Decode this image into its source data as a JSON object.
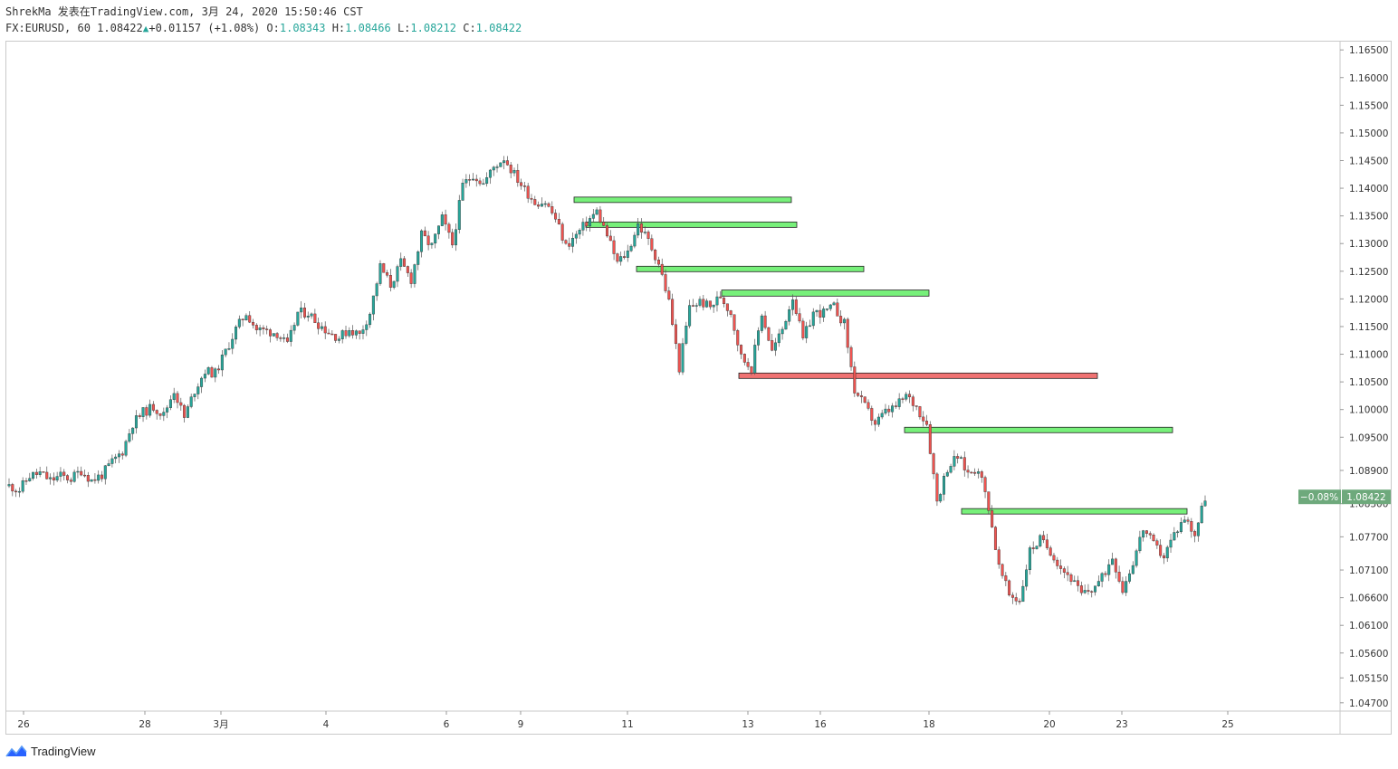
{
  "header": {
    "line1": "ShrekMa 发表在TradingView.com, 3月 24, 2020 15:50:46 CST",
    "symbol": "FX:EURUSD, 60",
    "last": "1.08422",
    "change": "+0.01157 (+1.08%)",
    "o_label": "O:",
    "o_value": "1.08343",
    "h_label": "H:",
    "h_value": "1.08466",
    "l_label": "L:",
    "l_value": "1.08212",
    "c_label": "C:",
    "c_value": "1.08422"
  },
  "footer": {
    "brand": "TradingView"
  },
  "colors": {
    "up": "#26a69a",
    "down": "#ef5350",
    "zone_green": "#77f07a",
    "zone_red": "#f07272",
    "price_tag": "#6ea97c"
  },
  "price_tag": {
    "pct": "−0.08%",
    "price": "1.08422"
  },
  "chart_data": {
    "type": "line",
    "title": "",
    "xlabel": "",
    "ylabel": "",
    "y_ticks": [
      "1.04700",
      "1.05150",
      "1.05600",
      "1.06100",
      "1.06600",
      "1.07100",
      "1.07700",
      "1.08300",
      "1.08900",
      "1.09500",
      "1.10000",
      "1.10500",
      "1.11000",
      "1.11500",
      "1.12000",
      "1.12500",
      "1.13000",
      "1.13500",
      "1.14000",
      "1.14500",
      "1.15000",
      "1.15500",
      "1.16000",
      "1.16500"
    ],
    "x_ticks": [
      "26",
      "28",
      "3月",
      "4",
      "6",
      "9",
      "11",
      "13",
      "16",
      "18",
      "20",
      "23",
      "25"
    ],
    "ylim": [
      1.0455,
      1.1665
    ],
    "series": [
      {
        "values": [
          1.0862,
          1.0855,
          1.088,
          1.0885,
          1.0872,
          1.088,
          1.0875,
          1.089,
          1.0872,
          1.0882,
          1.0905,
          1.0925,
          1.0975,
          1.0995,
          1.1005,
          1.099,
          1.1035,
          1.0985,
          1.1035,
          1.107,
          1.1065,
          1.1105,
          1.1145,
          1.1175,
          1.1145,
          1.1142,
          1.1138,
          1.1115,
          1.1175,
          1.1175,
          1.1155,
          1.114,
          1.113,
          1.1145,
          1.1135,
          1.1175,
          1.1258,
          1.1225,
          1.1265,
          1.1235,
          1.1315,
          1.1295,
          1.1345,
          1.1298,
          1.1405,
          1.1425,
          1.1408,
          1.1438,
          1.1455,
          1.1425,
          1.1398,
          1.1375,
          1.1375,
          1.1345,
          1.1295,
          1.1315,
          1.1338,
          1.1358,
          1.1315,
          1.1265,
          1.1285,
          1.1335,
          1.1305,
          1.1265,
          1.1195,
          1.1075,
          1.1185,
          1.1195,
          1.1185,
          1.1205,
          1.1175,
          1.1095,
          1.1075,
          1.1175,
          1.1105,
          1.1145,
          1.1205,
          1.1125,
          1.1175,
          1.1175,
          1.1185,
          1.1155,
          1.1035,
          1.1005,
          1.0975,
          1.0995,
          1.1005,
          1.1025,
          1.1005,
          1.0975,
          1.0835,
          1.0895,
          1.0915,
          1.0885,
          1.0895,
          1.0825,
          1.0715,
          1.0665,
          1.0655,
          1.0745,
          1.0765,
          1.0745,
          1.0715,
          1.0695,
          1.0665,
          1.0675,
          1.0695,
          1.0735,
          1.0675,
          1.0725,
          1.0785,
          1.0755,
          1.0735,
          1.0775,
          1.0805,
          1.0775,
          1.0842
        ]
      }
    ],
    "zones": [
      {
        "color": "green",
        "from_x": "10日",
        "y_top": 1.1384,
        "y_bottom": 1.1378
      },
      {
        "color": "green",
        "y_top": 1.1339,
        "y_bottom": 1.1333
      },
      {
        "color": "green",
        "y_top": 1.1259,
        "y_bottom": 1.1253
      },
      {
        "color": "green",
        "y_top": 1.1216,
        "y_bottom": 1.1205
      },
      {
        "color": "red",
        "y_top": 1.1066,
        "y_bottom": 1.106
      },
      {
        "color": "green",
        "y_top": 1.0968,
        "y_bottom": 1.0962
      },
      {
        "color": "green",
        "y_top": 1.0821,
        "y_bottom": 1.0815
      }
    ]
  }
}
